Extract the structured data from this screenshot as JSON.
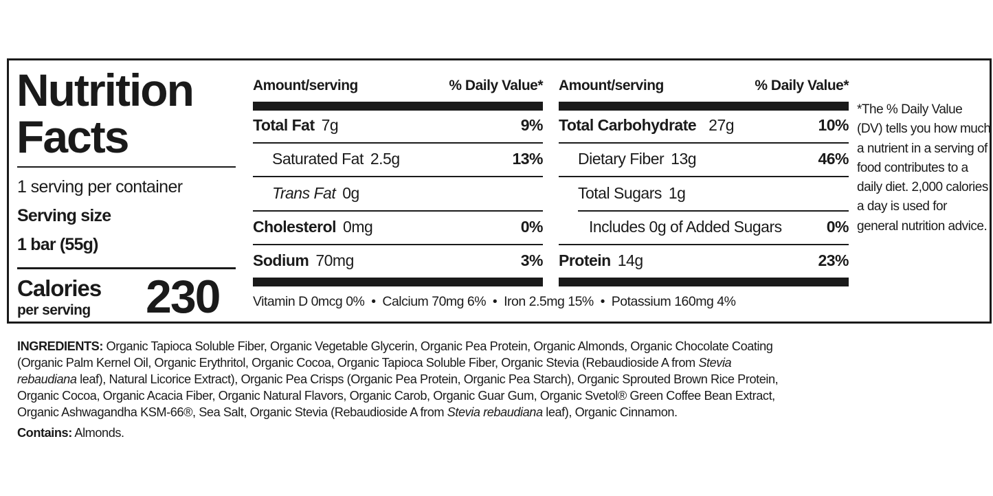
{
  "label": {
    "title_line1": "Nutrition",
    "title_line2": "Facts",
    "servings_per_container": "1 serving per container",
    "serving_size_label": "Serving size",
    "serving_size_value": "1 bar (55g)",
    "calories_label": "Calories",
    "calories_sub": "per serving",
    "calories_value": "230"
  },
  "columns": [
    {
      "header_amount": "Amount/serving",
      "header_dv": "% Daily Value*",
      "rows": [
        {
          "name": "Total Fat",
          "amount": "7g",
          "dv": "9%"
        },
        {
          "name": "Saturated Fat",
          "amount": "2.5g",
          "dv": "13%"
        },
        {
          "name": "Trans Fat",
          "amount": "0g",
          "dv": ""
        },
        {
          "name": "Cholesterol",
          "amount": "0mg",
          "dv": "0%"
        },
        {
          "name": "Sodium",
          "amount": "70mg",
          "dv": "3%"
        }
      ]
    },
    {
      "header_amount": "Amount/serving",
      "header_dv": "% Daily Value*",
      "rows": [
        {
          "name": "Total Carbohydrate",
          "amount": "27g",
          "dv": "10%"
        },
        {
          "name": "Dietary Fiber",
          "amount": "13g",
          "dv": "46%"
        },
        {
          "name": "Total Sugars",
          "amount": "1g",
          "dv": ""
        },
        {
          "name": "Includes 0g of Added Sugars",
          "amount": "",
          "dv": "0%"
        },
        {
          "name": "Protein",
          "amount": "14g",
          "dv": "23%"
        }
      ]
    }
  ],
  "vitamins": "Vitamin D 0mcg 0%  •  Calcium 70mg 6%  •  Iron 2.5mg 15%  •  Potassium 160mg 4%",
  "footnote": "*The % Daily Value (DV) tells you how much a nutrient in a serving of food contributes to a daily diet. 2,000 calories a day is used for general nutrition advice.",
  "ingredients": {
    "label": "INGREDIENTS:",
    "lines": [
      [
        {
          "t": " Organic Tapioca Soluble Fiber, Organic Vegetable Glycerin, Organic Pea Protein, Organic Almonds, Organic Chocolate Coating"
        }
      ],
      [
        {
          "t": "(Organic Palm Kernel Oil, Organic Erythritol, Organic Cocoa, Organic Tapioca Soluble Fiber, Organic Stevia (Rebaudioside A from "
        },
        {
          "t": "Stevia",
          "i": true
        }
      ],
      [
        {
          "t": "rebaudiana",
          "i": true
        },
        {
          "t": " leaf), Natural Licorice Extract), Organic Pea Crisps (Organic Pea Protein, Organic Pea Starch), Organic Sprouted Brown Rice Protein,"
        }
      ],
      [
        {
          "t": "Organic Cocoa, Organic Acacia Fiber, Organic Natural Flavors, Organic Carob, Organic Guar Gum, Organic Svetol® Green Coffee Bean Extract,"
        }
      ],
      [
        {
          "t": "Organic Ashwagandha KSM-66®, Sea Salt, Organic Stevia (Rebaudioside A from "
        },
        {
          "t": "Stevia rebaudiana",
          "i": true
        },
        {
          "t": " leaf), Organic Cinnamon."
        }
      ]
    ],
    "contains_label": "Contains:",
    "contains_value": " Almonds."
  }
}
